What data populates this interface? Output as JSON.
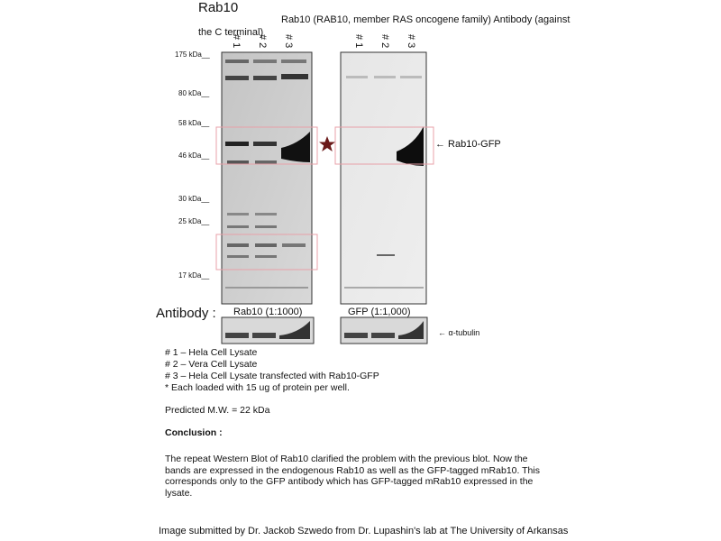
{
  "title": "Rab10",
  "subtitle": "Rab10 (RAB10, member RAS oncogene family) Antibody (against",
  "subtitle_cont": "the C terminal)",
  "lanes": [
    "# 1",
    "# 2",
    "# 3"
  ],
  "markers": [
    "175 kDa__",
    "80 kDa__",
    "58 kDa__",
    "46 kDa__",
    "30 kDa__",
    "25 kDa__",
    "17 kDa__"
  ],
  "band_label": "← Rab10-GFP",
  "loading_control_label": "← α-tubulin",
  "antibody_label": "Antibody :",
  "antibodies": [
    "Rab10 (1:1000)",
    "GFP (1:1,000)"
  ],
  "legend": [
    "# 1 – Hela Cell Lysate",
    "# 2 – Vera Cell Lysate",
    "# 3 – Hela Cell Lysate transfected with Rab10-GFP",
    "* Each loaded with 15 ug of protein per well."
  ],
  "predicted_mw": "Predicted M.W. = 22 kDa",
  "conclusion_heading": "Conclusion :",
  "conclusion_text": "The repeat Western Blot of Rab10 clarified the problem with the previous blot. Now the bands are expressed in the endogenous Rab10 as well as the GFP-tagged mRab10. This corresponds only to the GFP antibody which has GFP-tagged mRab10 expressed in the lysate.",
  "credit": "Image submitted by Dr. Jackob Szwedo from Dr. Lupashin's lab at The University of Arkansas",
  "colors": {
    "highlight_box": "#e8a0a8",
    "star": "#6b1a1a"
  }
}
